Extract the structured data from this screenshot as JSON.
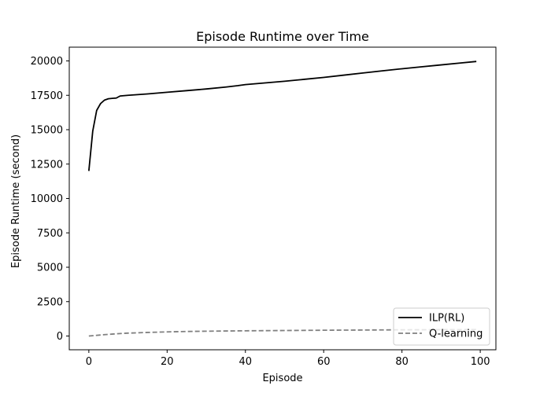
{
  "chart_data": {
    "type": "line",
    "title": "Episode Runtime over Time",
    "xlabel": "Episode",
    "ylabel": "Episode Runtime (second)",
    "xlim": [
      -5,
      104
    ],
    "ylim": [
      -1000,
      21000
    ],
    "xticks": [
      0,
      20,
      40,
      60,
      80,
      100
    ],
    "yticks": [
      0,
      2500,
      5000,
      7500,
      10000,
      12500,
      15000,
      17500,
      20000
    ],
    "grid": false,
    "legend_position": "lower right",
    "series": [
      {
        "name": "ILP(RL)",
        "color": "#000000",
        "linestyle": "solid",
        "x": [
          0,
          1,
          2,
          3,
          4,
          5,
          6,
          7,
          8,
          10,
          15,
          20,
          25,
          30,
          35,
          38,
          40,
          45,
          50,
          55,
          60,
          65,
          70,
          75,
          80,
          85,
          90,
          95,
          99
        ],
        "y": [
          12000,
          14900,
          16400,
          16900,
          17150,
          17250,
          17280,
          17300,
          17450,
          17500,
          17600,
          17720,
          17840,
          17960,
          18100,
          18200,
          18280,
          18400,
          18520,
          18660,
          18800,
          18960,
          19120,
          19280,
          19430,
          19570,
          19710,
          19850,
          19960
        ]
      },
      {
        "name": "Q-learning",
        "color": "#808080",
        "linestyle": "dashed",
        "x": [
          0,
          2,
          4,
          6,
          8,
          10,
          15,
          20,
          25,
          30,
          40,
          50,
          60,
          70,
          80,
          90,
          99
        ],
        "y": [
          0,
          50,
          100,
          140,
          180,
          210,
          260,
          300,
          330,
          350,
          380,
          400,
          420,
          435,
          450,
          460,
          470
        ]
      }
    ]
  }
}
